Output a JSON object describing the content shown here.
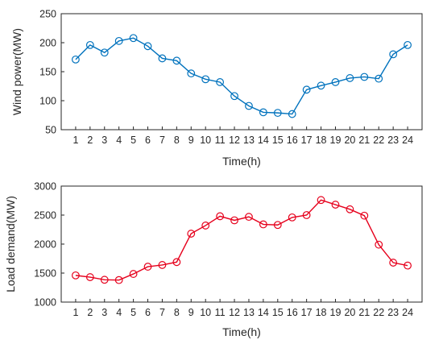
{
  "chart_data": [
    {
      "type": "line",
      "xlabel": "Time(h)",
      "ylabel": "Wind power(MW)",
      "ylim": [
        50,
        250
      ],
      "yticks": [
        50,
        100,
        150,
        200,
        250
      ],
      "x": [
        1,
        2,
        3,
        4,
        5,
        6,
        7,
        8,
        9,
        10,
        11,
        12,
        13,
        14,
        15,
        16,
        17,
        18,
        19,
        20,
        21,
        22,
        23,
        24
      ],
      "values": [
        171,
        196,
        183,
        203,
        208,
        194,
        173,
        169,
        147,
        137,
        132,
        108,
        91,
        80,
        79,
        77,
        119,
        126,
        132,
        139,
        141,
        138,
        180,
        196
      ],
      "color": "#0072BD",
      "marker": "circle",
      "grid": false
    },
    {
      "type": "line",
      "xlabel": "Time(h)",
      "ylabel": "Load demand(MW)",
      "ylim": [
        1000,
        3000
      ],
      "yticks": [
        1000,
        1500,
        2000,
        2500,
        3000
      ],
      "x": [
        1,
        2,
        3,
        4,
        5,
        6,
        7,
        8,
        9,
        10,
        11,
        12,
        13,
        14,
        15,
        16,
        17,
        18,
        19,
        20,
        21,
        22,
        23,
        24
      ],
      "values": [
        1460,
        1430,
        1385,
        1380,
        1485,
        1610,
        1640,
        1690,
        2180,
        2320,
        2480,
        2410,
        2470,
        2340,
        2330,
        2460,
        2500,
        2760,
        2680,
        2600,
        2490,
        1990,
        1680,
        1630
      ],
      "color": "#E6001C",
      "marker": "circle",
      "grid": false
    }
  ]
}
